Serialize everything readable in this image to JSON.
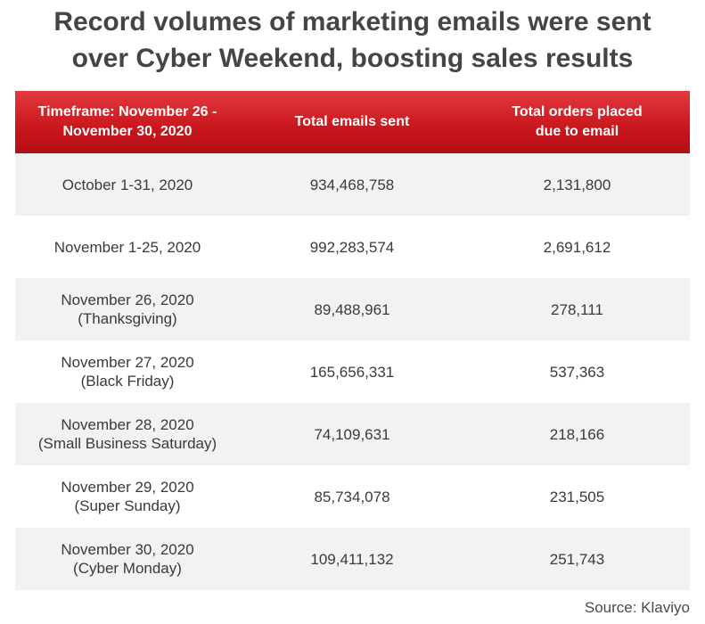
{
  "title": {
    "line1": "Record volumes of marketing emails were sent",
    "line2": "over Cyber Weekend, boosting sales results"
  },
  "source": "Source: Klaviyo",
  "chart_data": {
    "type": "table",
    "title": "Record volumes of marketing emails were sent over Cyber Weekend, boosting sales results",
    "columns": [
      [
        "Timeframe: November 26 -",
        "November 30, 2020"
      ],
      [
        "Total emails sent"
      ],
      [
        "Total orders placed",
        "due to email"
      ]
    ],
    "rows": [
      {
        "timeframe": [
          "October 1-31, 2020"
        ],
        "emails": "934,468,758",
        "orders": "2,131,800"
      },
      {
        "timeframe": [
          "November 1-25, 2020"
        ],
        "emails": "992,283,574",
        "orders": "2,691,612"
      },
      {
        "timeframe": [
          "November 26, 2020",
          "(Thanksgiving)"
        ],
        "emails": "89,488,961",
        "orders": "278,111"
      },
      {
        "timeframe": [
          "November 27, 2020",
          "(Black Friday)"
        ],
        "emails": "165,656,331",
        "orders": "537,363"
      },
      {
        "timeframe": [
          "November 28, 2020",
          "(Small Business Saturday)"
        ],
        "emails": "74,109,631",
        "orders": "218,166"
      },
      {
        "timeframe": [
          "November 29, 2020",
          "(Super Sunday)"
        ],
        "emails": "85,734,078",
        "orders": "231,505"
      },
      {
        "timeframe": [
          "November 30, 2020",
          "(Cyber Monday)"
        ],
        "emails": "109,411,132",
        "orders": "251,743"
      }
    ],
    "header_color": "#c8161c",
    "stripe_color": "#f2f2f2"
  }
}
